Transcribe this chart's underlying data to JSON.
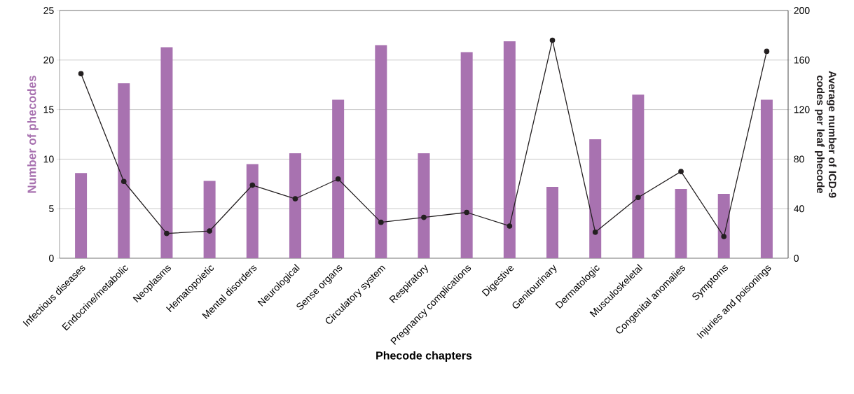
{
  "chart_data": {
    "type": "bar",
    "xlabel": "Phecode chapters",
    "ylabel": "Number of phecodes",
    "y2label": "Average number of ICD-9 codes per leaf phecode",
    "categories": [
      "Infectious diseases",
      "Endocrine/metabolic",
      "Neoplasms",
      "Hematopoietic",
      "Mental disorders",
      "Neurological",
      "Sense organs",
      "Circulatory system",
      "Respiratory",
      "Pregnancy complications",
      "Digestive",
      "Genitourinary",
      "Dermatologic",
      "Musculoskeletal",
      "Congenital anomalies",
      "Symptoms",
      "Injuries and poisonings"
    ],
    "series": [
      {
        "color": "#a872b0",
        "values": [
          8.6,
          17.65,
          21.3,
          7.8,
          9.5,
          10.6,
          16.0,
          21.5,
          10.6,
          20.8,
          21.9,
          7.2,
          12.0,
          16.5,
          7.0,
          6.5,
          16.0
        ]
      },
      {
        "type": "line",
        "axis": "y2",
        "color": "#231f20",
        "marker": "circle",
        "line_style": "solid",
        "values": [
          149,
          62,
          20,
          22,
          59,
          48,
          64,
          29,
          33,
          37,
          26,
          176,
          21,
          49,
          70,
          17.5,
          167
        ]
      }
    ],
    "ylim": [
      0,
      25
    ],
    "yticks": [
      0,
      5,
      10,
      15,
      20,
      25
    ],
    "y2lim": [
      0,
      200
    ],
    "y2ticks": [
      0,
      40,
      80,
      120,
      160,
      200
    ],
    "grid": "y"
  }
}
